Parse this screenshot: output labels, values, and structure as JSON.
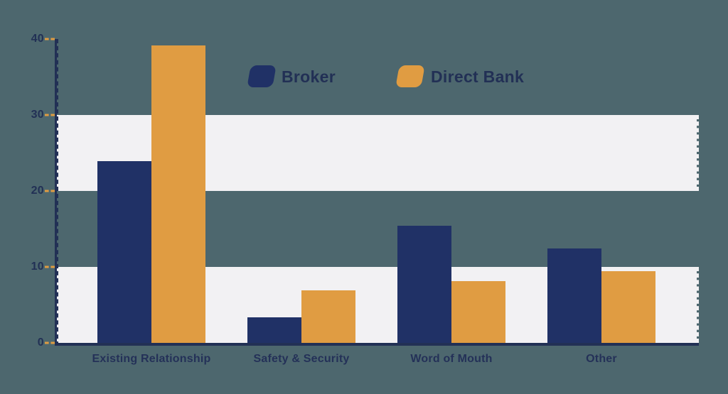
{
  "chart_data": {
    "type": "bar",
    "title": "",
    "xlabel": "",
    "ylabel": "",
    "categories": [
      "Existing Relationship",
      "Safety & Security",
      "Word of Mouth",
      "Other"
    ],
    "series": [
      {
        "name": "Broker",
        "color": "#203166",
        "values": [
          23.9,
          3.4,
          15.4,
          12.4
        ]
      },
      {
        "name": "Direct Bank",
        "color": "#e09c42",
        "values": [
          39.2,
          6.9,
          8.1,
          9.4
        ]
      }
    ],
    "ylim": [
      0,
      40
    ],
    "yticks": [
      0,
      10,
      20,
      30,
      40
    ],
    "background_bands": [
      [
        20,
        30
      ],
      [
        0,
        10
      ]
    ],
    "grid": false,
    "legend_position": "top-center"
  },
  "colors": {
    "background": "#4d676e",
    "band": "#f2f1f3",
    "axis": "#223055",
    "tick_dash": "#e09c42",
    "text": "#243158"
  }
}
